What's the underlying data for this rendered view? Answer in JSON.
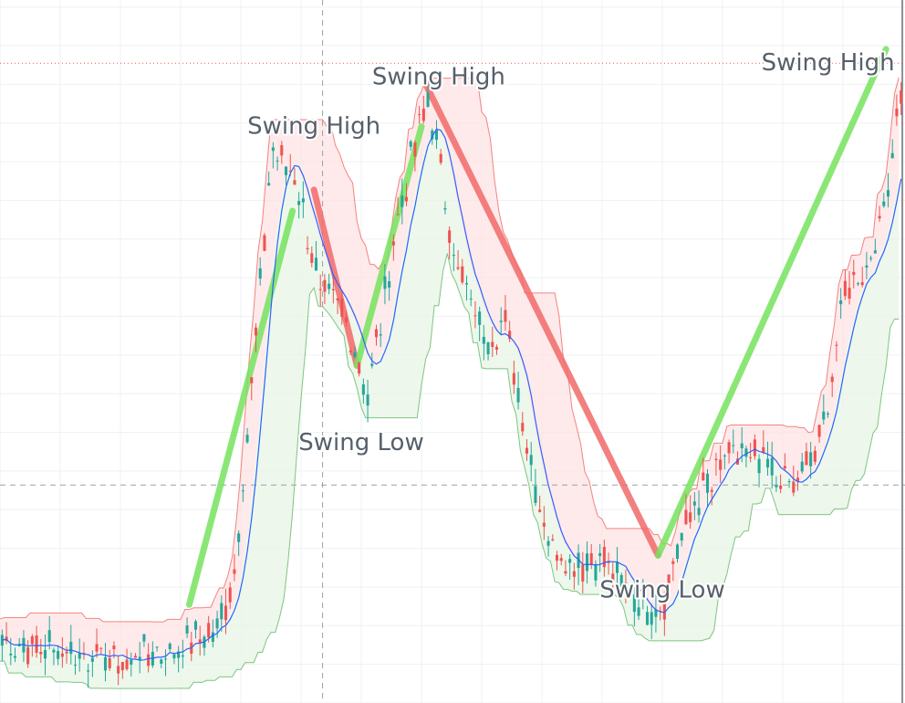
{
  "chart_data": {
    "type": "candlestick",
    "grid": true,
    "colors": {
      "up": "#26a69a",
      "down": "#ef5350",
      "ma": "#2962ff",
      "bull_trend": "#76e35f",
      "bear_trend": "#f26a6a",
      "bear_band_fill": "#fde3e3",
      "bull_band_fill": "#e8f5e6"
    },
    "x_range": [
      0,
      210
    ],
    "y_range": [
      0,
      100
    ],
    "ohlc_segments": [
      [
        0,
        9,
        6,
        10
      ],
      [
        30,
        6,
        5,
        9
      ],
      [
        45,
        9,
        10,
        9
      ],
      [
        50,
        11,
        13,
        12
      ],
      [
        54,
        18,
        20,
        22
      ],
      [
        63,
        80,
        70,
        70
      ],
      [
        69,
        73,
        68,
        75
      ],
      [
        74,
        58,
        60,
        55
      ],
      [
        80,
        55,
        54,
        58
      ],
      [
        85,
        44,
        35,
        45
      ],
      [
        93,
        72,
        80,
        82
      ],
      [
        99,
        86,
        88,
        85
      ],
      [
        106,
        62,
        61,
        60
      ],
      [
        112,
        52,
        58,
        55
      ],
      [
        117,
        54,
        55,
        50
      ],
      [
        123,
        34,
        32,
        30
      ],
      [
        128,
        22,
        20,
        25
      ],
      [
        135,
        20,
        24,
        18
      ],
      [
        140,
        21,
        18,
        17
      ],
      [
        146,
        15,
        14,
        13
      ],
      [
        153,
        13,
        14,
        12
      ],
      [
        158,
        24,
        26,
        20
      ],
      [
        162,
        29,
        33,
        34
      ],
      [
        168,
        34,
        30,
        32
      ],
      [
        172,
        36,
        38,
        36
      ],
      [
        178,
        33,
        30,
        35
      ],
      [
        184,
        30,
        34,
        33
      ],
      [
        190,
        37,
        48,
        48
      ],
      [
        196,
        58,
        62,
        60
      ],
      [
        203,
        65,
        70,
        68
      ],
      [
        205,
        70,
        70,
        78
      ],
      [
        207,
        78,
        90,
        80
      ],
      [
        208,
        85,
        95,
        95
      ]
    ],
    "trend_lines": [
      {
        "direction": "up",
        "x1": 44,
        "y1": 14,
        "x2": 68,
        "y2": 70
      },
      {
        "direction": "down",
        "x1": 73,
        "y1": 73,
        "x2": 83,
        "y2": 48
      },
      {
        "direction": "up",
        "x1": 83,
        "y1": 48,
        "x2": 98,
        "y2": 82
      },
      {
        "direction": "down",
        "x1": 99,
        "y1": 88,
        "x2": 153,
        "y2": 21
      },
      {
        "direction": "up",
        "x1": 153,
        "y1": 21,
        "x2": 206,
        "y2": 93
      }
    ],
    "annotations": [
      {
        "text": "Swing High",
        "x": 73,
        "y": 81,
        "anchor": "middle"
      },
      {
        "text": "Swing High",
        "x": 102,
        "y": 88,
        "anchor": "middle"
      },
      {
        "text": "Swing High",
        "x": 208,
        "y": 90,
        "anchor": "end"
      },
      {
        "text": "Swing Low",
        "x": 84,
        "y": 36,
        "anchor": "middle"
      },
      {
        "text": "Swing Low",
        "x": 154,
        "y": 15,
        "anchor": "middle"
      }
    ],
    "reference_lines": [
      {
        "orientation": "horizontal",
        "y": 91,
        "style": "dotted",
        "color": "#ef5350"
      },
      {
        "orientation": "horizontal",
        "y": 31,
        "style": "dashed",
        "color": "#9aa0a6"
      },
      {
        "orientation": "vertical",
        "x": 75,
        "style": "dashed",
        "color": "#9aa0a6"
      }
    ]
  }
}
